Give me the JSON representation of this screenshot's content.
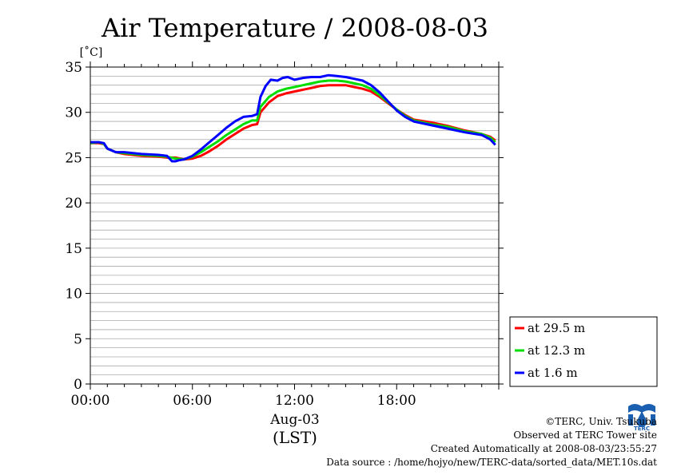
{
  "chart_data": {
    "type": "line",
    "title": "Air Temperature / 2008-08-03",
    "ylabel": "[˚C]",
    "xlabel": "Aug-03",
    "xlabel2": "(LST)",
    "ylim": [
      0,
      35
    ],
    "xlim": [
      0,
      24
    ],
    "y_ticks": [
      "0",
      "5",
      "10",
      "15",
      "20",
      "25",
      "30",
      "35"
    ],
    "x_ticks": [
      "00:00",
      "06:00",
      "12:00",
      "18:00"
    ],
    "grid": true,
    "legend_position": "right",
    "series": [
      {
        "name": "at 29.5 m",
        "color": "#ff0000",
        "x": [
          0,
          0.5,
          0.8,
          1,
          1.5,
          2,
          3,
          4,
          4.5,
          5,
          5.5,
          6,
          6.5,
          7,
          7.5,
          8,
          8.5,
          9,
          9.5,
          9.8,
          10,
          10.5,
          11,
          11.5,
          12,
          12.5,
          13,
          13.5,
          14,
          14.5,
          15,
          15.5,
          16,
          16.5,
          17,
          17.5,
          18,
          18.5,
          19,
          20,
          21,
          22,
          23,
          23.5,
          23.8
        ],
        "y": [
          26.6,
          26.6,
          26.5,
          26.0,
          25.6,
          25.4,
          25.2,
          25.1,
          25.0,
          25.0,
          24.8,
          24.9,
          25.2,
          25.7,
          26.3,
          27.0,
          27.6,
          28.2,
          28.6,
          28.7,
          30.0,
          31.1,
          31.8,
          32.1,
          32.3,
          32.5,
          32.7,
          32.9,
          33.0,
          33.0,
          33.0,
          32.8,
          32.6,
          32.3,
          31.7,
          31.0,
          30.3,
          29.7,
          29.2,
          28.9,
          28.5,
          28.0,
          27.6,
          27.3,
          26.9
        ]
      },
      {
        "name": "at 12.3 m",
        "color": "#00dd00",
        "x": [
          0,
          0.5,
          0.8,
          1,
          1.5,
          2,
          3,
          4,
          4.5,
          5,
          5.5,
          6,
          6.5,
          7,
          7.5,
          8,
          8.5,
          9,
          9.5,
          9.8,
          10,
          10.5,
          11,
          11.5,
          12,
          12.5,
          13,
          13.5,
          14,
          14.5,
          15,
          15.5,
          16,
          16.5,
          17,
          17.5,
          18,
          18.5,
          19,
          20,
          21,
          22,
          23,
          23.5,
          23.8
        ],
        "y": [
          26.6,
          26.7,
          26.5,
          26.0,
          25.6,
          25.5,
          25.3,
          25.2,
          25.1,
          24.9,
          24.8,
          25.1,
          25.6,
          26.2,
          26.8,
          27.5,
          28.1,
          28.7,
          29.1,
          29.1,
          30.6,
          31.7,
          32.3,
          32.6,
          32.8,
          33.0,
          33.2,
          33.4,
          33.5,
          33.5,
          33.4,
          33.2,
          33.0,
          32.6,
          31.9,
          31.1,
          30.3,
          29.6,
          29.1,
          28.7,
          28.4,
          27.9,
          27.6,
          27.2,
          26.7
        ]
      },
      {
        "name": "at 1.6 m",
        "color": "#0000ff",
        "x": [
          0,
          0.5,
          0.8,
          1,
          1.5,
          2,
          3,
          4,
          4.5,
          4.8,
          5,
          5.2,
          5.5,
          6,
          6.5,
          7,
          7.5,
          8,
          8.5,
          9,
          9.5,
          9.8,
          10,
          10.3,
          10.6,
          11,
          11.3,
          11.6,
          12,
          12.5,
          13,
          13.5,
          14,
          14.5,
          15,
          15.5,
          16,
          16.5,
          17,
          17.5,
          18,
          18.5,
          19,
          20,
          21,
          22,
          23,
          23.5,
          23.8
        ],
        "y": [
          26.7,
          26.7,
          26.6,
          26.0,
          25.6,
          25.6,
          25.4,
          25.3,
          25.2,
          24.6,
          24.6,
          24.7,
          24.8,
          25.2,
          25.9,
          26.7,
          27.5,
          28.3,
          29.0,
          29.5,
          29.6,
          29.8,
          31.7,
          32.9,
          33.6,
          33.5,
          33.8,
          33.9,
          33.6,
          33.8,
          33.9,
          33.9,
          34.1,
          34.0,
          33.9,
          33.7,
          33.5,
          33.0,
          32.2,
          31.2,
          30.2,
          29.5,
          29.0,
          28.6,
          28.2,
          27.8,
          27.5,
          27.0,
          26.4
        ]
      }
    ]
  },
  "credits": {
    "copyright": "©TERC, Univ. Tsukuba",
    "site": "Observed at TERC Tower site",
    "created": "Created Automatically at 2008-08-03/23:55:27",
    "source": "Data source : /home/hojyo/new/TERC-data/sorted_data/MET.10s.dat"
  },
  "logo": {
    "text": "TERC",
    "color": "#1b5fb0"
  }
}
